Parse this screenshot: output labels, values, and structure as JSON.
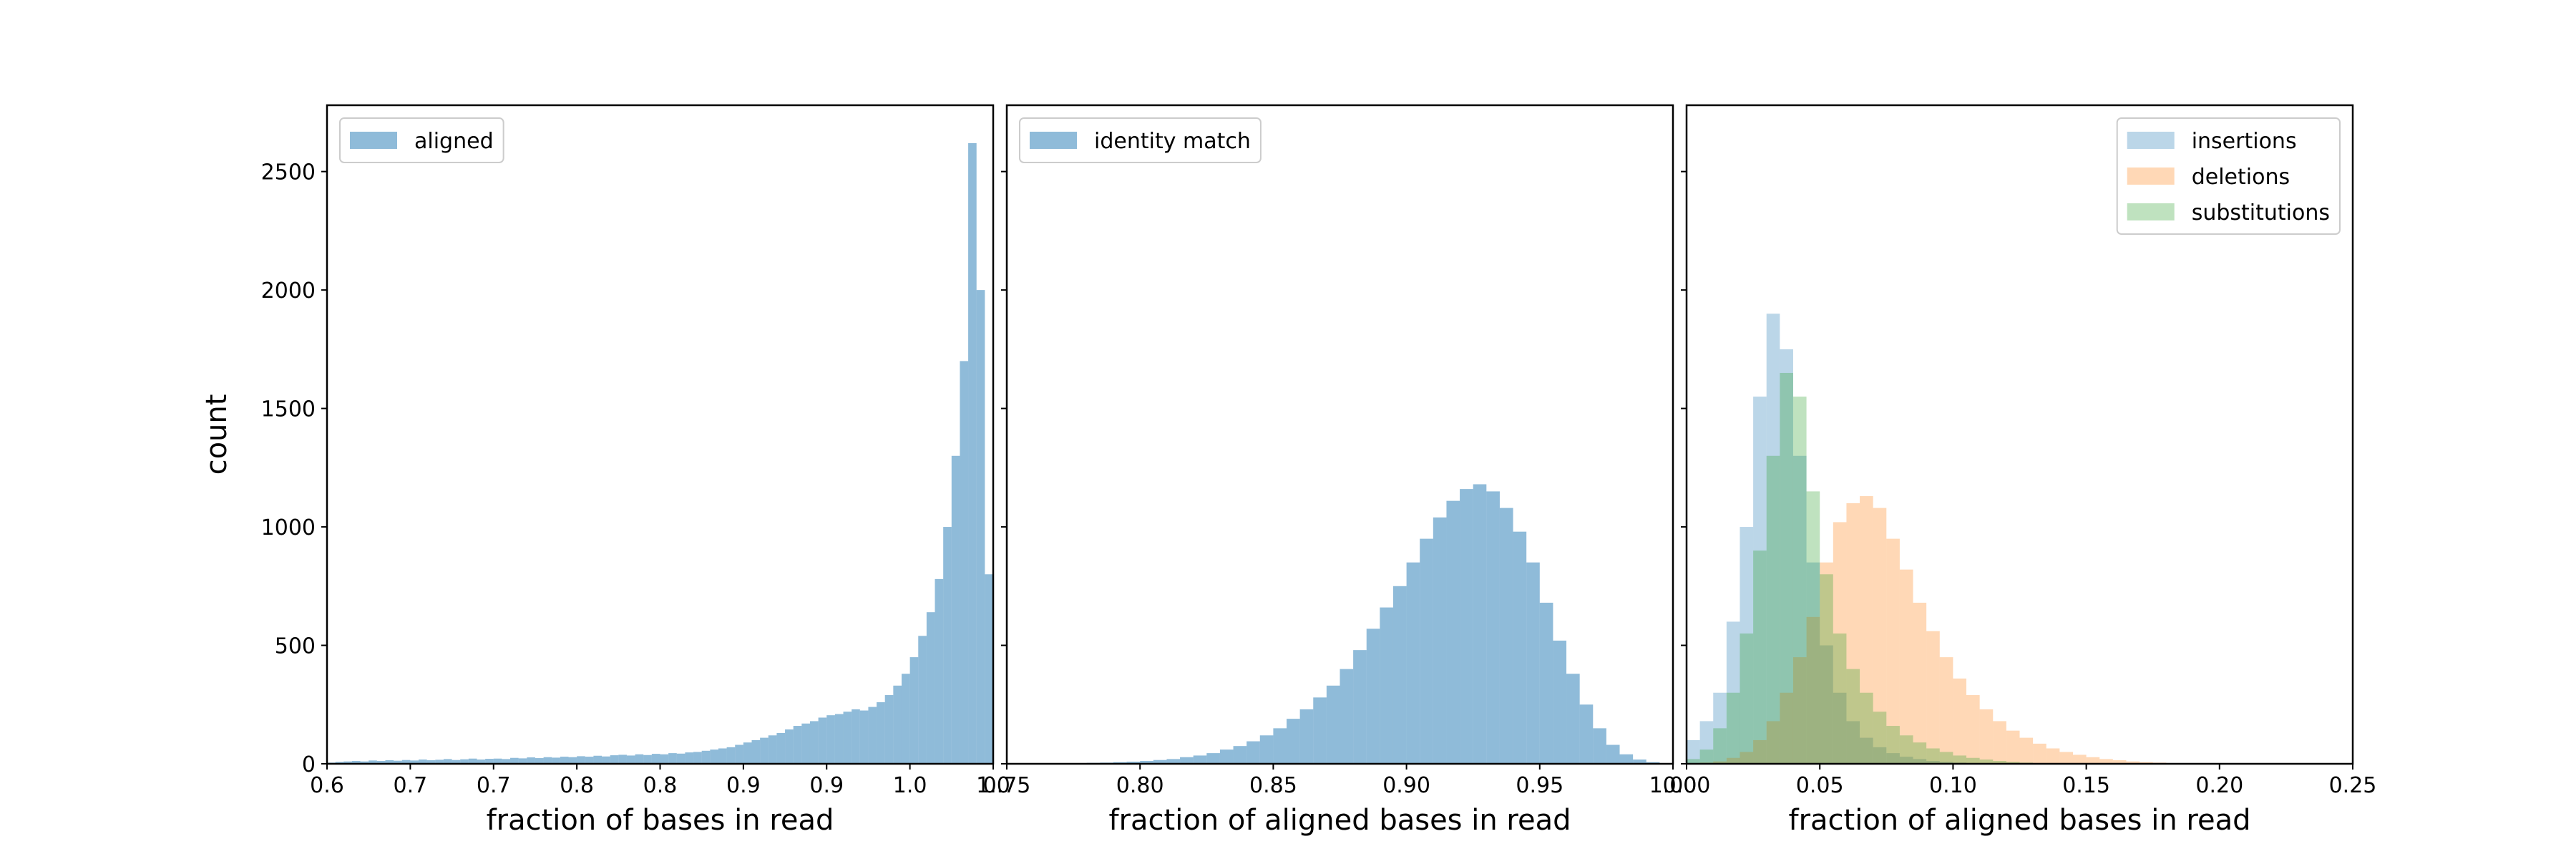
{
  "chart_data": [
    {
      "type": "histogram",
      "xlabel": "fraction of bases in read",
      "ylabel": "count",
      "legend": "upper left",
      "xlim": [
        0.6,
        1.0
      ],
      "ylim": [
        0,
        2780
      ],
      "xticks": [
        0.6,
        {
          "value": 0.65,
          "label": "0.7"
        },
        0.7,
        {
          "value": 0.75,
          "label": "0.8"
        },
        0.8,
        {
          "value": 0.85,
          "label": "0.9"
        },
        0.9,
        {
          "value": 0.95,
          "label": "1.0"
        },
        {
          "value": 1.0,
          "label": "1.0"
        }
      ],
      "yticks": [
        0,
        500,
        1000,
        1500,
        2000,
        2500
      ],
      "bins": [
        0.6,
        0.605,
        0.61,
        0.615,
        0.62,
        0.625,
        0.63,
        0.635,
        0.64,
        0.645,
        0.65,
        0.655,
        0.66,
        0.665,
        0.67,
        0.675,
        0.68,
        0.685,
        0.69,
        0.695,
        0.7,
        0.705,
        0.71,
        0.715,
        0.72,
        0.725,
        0.73,
        0.735,
        0.74,
        0.745,
        0.75,
        0.755,
        0.76,
        0.765,
        0.77,
        0.775,
        0.78,
        0.785,
        0.79,
        0.795,
        0.8,
        0.805,
        0.81,
        0.815,
        0.82,
        0.825,
        0.83,
        0.835,
        0.84,
        0.845,
        0.85,
        0.855,
        0.86,
        0.865,
        0.87,
        0.875,
        0.88,
        0.885,
        0.89,
        0.895,
        0.9,
        0.905,
        0.91,
        0.915,
        0.92,
        0.925,
        0.93,
        0.935,
        0.94,
        0.945,
        0.95,
        0.955,
        0.96,
        0.965,
        0.97,
        0.975,
        0.98,
        0.985,
        0.99,
        0.995,
        1.0
      ],
      "series": [
        {
          "name": "aligned",
          "color": "#1f77b4",
          "alpha": 0.5,
          "values": [
            5,
            8,
            10,
            12,
            10,
            14,
            12,
            15,
            13,
            16,
            14,
            18,
            15,
            17,
            20,
            16,
            19,
            22,
            18,
            21,
            22,
            20,
            25,
            23,
            27,
            24,
            28,
            26,
            30,
            28,
            32,
            30,
            34,
            31,
            36,
            38,
            35,
            40,
            37,
            42,
            40,
            45,
            43,
            48,
            50,
            55,
            60,
            65,
            70,
            80,
            90,
            100,
            110,
            120,
            130,
            145,
            160,
            170,
            180,
            195,
            205,
            210,
            220,
            230,
            225,
            240,
            260,
            290,
            330,
            380,
            450,
            540,
            640,
            780,
            1000,
            1300,
            1700,
            2620,
            2000,
            800
          ]
        }
      ]
    },
    {
      "type": "histogram",
      "xlabel": "fraction of aligned bases in read",
      "legend": "upper left",
      "xlim": [
        0.75,
        1.0
      ],
      "ylim": [
        0,
        2780
      ],
      "xticks": [
        0.75,
        {
          "value": 0.8,
          "label": "0.80"
        },
        0.85,
        {
          "value": 0.9,
          "label": "0.90"
        },
        0.95,
        {
          "value": 1.0,
          "label": "1.00"
        }
      ],
      "bins": [
        0.75,
        0.755,
        0.76,
        0.765,
        0.77,
        0.775,
        0.78,
        0.785,
        0.79,
        0.795,
        0.8,
        0.805,
        0.81,
        0.815,
        0.82,
        0.825,
        0.83,
        0.835,
        0.84,
        0.845,
        0.85,
        0.855,
        0.86,
        0.865,
        0.87,
        0.875,
        0.88,
        0.885,
        0.89,
        0.895,
        0.9,
        0.905,
        0.91,
        0.915,
        0.92,
        0.925,
        0.93,
        0.935,
        0.94,
        0.945,
        0.95,
        0.955,
        0.96,
        0.965,
        0.97,
        0.975,
        0.98,
        0.985,
        0.99,
        0.995,
        1.0
      ],
      "series": [
        {
          "name": "identity match",
          "color": "#1f77b4",
          "alpha": 0.5,
          "values": [
            0,
            0,
            1,
            1,
            2,
            3,
            4,
            5,
            7,
            9,
            12,
            16,
            20,
            28,
            35,
            45,
            60,
            75,
            95,
            120,
            150,
            190,
            230,
            280,
            330,
            400,
            480,
            570,
            660,
            750,
            850,
            950,
            1040,
            1110,
            1160,
            1180,
            1150,
            1080,
            980,
            850,
            680,
            520,
            380,
            250,
            150,
            80,
            40,
            18,
            7,
            2
          ]
        }
      ]
    },
    {
      "type": "histogram",
      "xlabel": "fraction of aligned bases in read",
      "legend": "upper right",
      "xlim": [
        0,
        0.25
      ],
      "ylim": [
        0,
        2780
      ],
      "xticks": [
        {
          "value": 0,
          "label": "0.00"
        },
        0.05,
        {
          "value": 0.1,
          "label": "0.10"
        },
        0.15,
        {
          "value": 0.2,
          "label": "0.20"
        },
        0.25
      ],
      "bins": [
        0,
        0.005,
        0.01,
        0.015,
        0.02,
        0.025,
        0.03,
        0.035,
        0.04,
        0.045,
        0.05,
        0.055,
        0.06,
        0.065,
        0.07,
        0.075,
        0.08,
        0.085,
        0.09,
        0.095,
        0.1,
        0.105,
        0.11,
        0.115,
        0.12,
        0.125,
        0.13,
        0.135,
        0.14,
        0.145,
        0.15,
        0.155,
        0.16,
        0.165,
        0.17,
        0.175,
        0.18,
        0.185,
        0.19,
        0.195,
        0.2,
        0.205,
        0.21,
        0.215,
        0.22,
        0.225,
        0.23,
        0.235,
        0.24,
        0.245,
        0.25
      ],
      "series": [
        {
          "name": "insertions",
          "color": "#1f77b4",
          "alpha": 0.3,
          "values": [
            100,
            180,
            300,
            600,
            1000,
            1550,
            1900,
            1750,
            1300,
            850,
            500,
            300,
            180,
            110,
            70,
            45,
            30,
            20,
            12,
            8,
            5,
            3,
            2,
            1,
            1,
            0,
            0,
            0,
            0,
            0,
            0,
            0,
            0,
            0,
            0,
            0,
            0,
            0,
            0,
            0,
            0,
            0,
            0,
            0,
            0,
            0,
            0,
            0,
            0,
            0
          ]
        },
        {
          "name": "deletions",
          "color": "#ff7f0e",
          "alpha": 0.3,
          "values": [
            2,
            5,
            10,
            25,
            50,
            100,
            180,
            300,
            450,
            620,
            850,
            1020,
            1100,
            1130,
            1080,
            950,
            820,
            680,
            560,
            450,
            360,
            290,
            230,
            180,
            140,
            110,
            85,
            65,
            50,
            38,
            28,
            20,
            15,
            10,
            7,
            5,
            3,
            2,
            1,
            1,
            0,
            0,
            0,
            0,
            0,
            0,
            0,
            0,
            0,
            0
          ]
        },
        {
          "name": "substitutions",
          "color": "#2ca02c",
          "alpha": 0.3,
          "values": [
            20,
            60,
            150,
            300,
            550,
            900,
            1300,
            1650,
            1550,
            1150,
            800,
            550,
            400,
            300,
            220,
            160,
            120,
            90,
            65,
            50,
            35,
            25,
            18,
            12,
            8,
            5,
            3,
            2,
            1,
            1,
            0,
            0,
            0,
            0,
            0,
            0,
            0,
            0,
            0,
            0,
            0,
            0,
            0,
            0,
            0,
            0,
            0,
            0,
            0,
            0
          ]
        }
      ]
    }
  ]
}
